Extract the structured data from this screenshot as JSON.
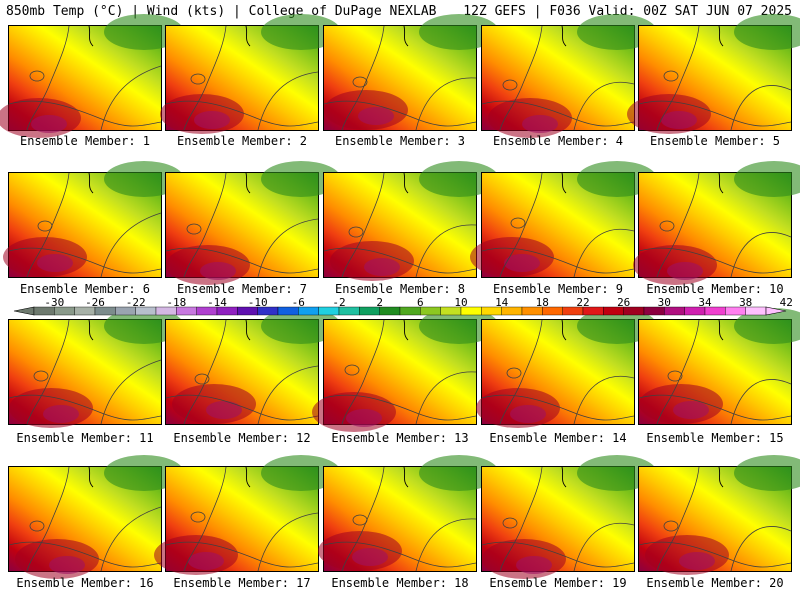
{
  "header": {
    "left": "850mb Temp (°C) | Wind (kts) | College of DuPage NEXLAB",
    "right": "12Z GEFS | F036 Valid: 00Z SAT JUN 07 2025"
  },
  "panels": [
    {
      "label": "Ensemble Member: 1"
    },
    {
      "label": "Ensemble Member: 2"
    },
    {
      "label": "Ensemble Member: 3"
    },
    {
      "label": "Ensemble Member: 4"
    },
    {
      "label": "Ensemble Member: 5"
    },
    {
      "label": "Ensemble Member: 6"
    },
    {
      "label": "Ensemble Member: 7"
    },
    {
      "label": "Ensemble Member: 8"
    },
    {
      "label": "Ensemble Member: 9"
    },
    {
      "label": "Ensemble Member: 10"
    },
    {
      "label": "Ensemble Member: 11"
    },
    {
      "label": "Ensemble Member: 12"
    },
    {
      "label": "Ensemble Member: 13"
    },
    {
      "label": "Ensemble Member: 14"
    },
    {
      "label": "Ensemble Member: 15"
    },
    {
      "label": "Ensemble Member: 16"
    },
    {
      "label": "Ensemble Member: 17"
    },
    {
      "label": "Ensemble Member: 18"
    },
    {
      "label": "Ensemble Member: 19"
    },
    {
      "label": "Ensemble Member: 20"
    }
  ],
  "colorbar": {
    "tick_labels": [
      "-30",
      "-26",
      "-22",
      "-18",
      "-14",
      "-10",
      "-6",
      "-2",
      "2",
      "6",
      "10",
      "14",
      "18",
      "22",
      "26",
      "30",
      "34",
      "38",
      "42"
    ],
    "colors": [
      "#6e7a6e",
      "#8a9a8a",
      "#a7b1a7",
      "#7c8c8c",
      "#9aa4b0",
      "#b7bfcc",
      "#d4b8e4",
      "#c878e0",
      "#b040d0",
      "#9020c0",
      "#6010b0",
      "#3030c8",
      "#1060e0",
      "#10a0f0",
      "#20d0e0",
      "#20c0a0",
      "#10a060",
      "#208c20",
      "#50a820",
      "#8cc820",
      "#c4e020",
      "#ffff00",
      "#ffd800",
      "#ffb400",
      "#ff9000",
      "#ff6800",
      "#f04010",
      "#e01818",
      "#c00010",
      "#a00020",
      "#8c0040",
      "#b01080",
      "#d020b0",
      "#f040d0",
      "#ff80f0",
      "#ffc0ff"
    ]
  }
}
